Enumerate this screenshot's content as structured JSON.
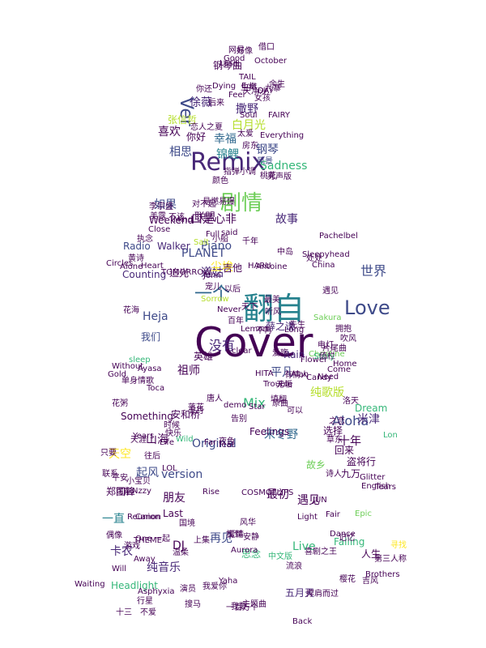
{
  "palette": [
    "#440154",
    "#482878",
    "#3e4a89",
    "#31688e",
    "#26828e",
    "#1f9e89",
    "#35b779",
    "#6ece58",
    "#b5de2b",
    "#fde725"
  ],
  "words": [
    {
      "t": "Cover",
      "c": "#440154"
    },
    {
      "t": "翻自",
      "c": "#26828e"
    },
    {
      "t": "Remix",
      "c": "#482878"
    },
    {
      "t": "剧情",
      "c": "#6ece58"
    },
    {
      "t": "一个",
      "c": "#31688e"
    },
    {
      "t": "Love",
      "c": "#3e4a89"
    },
    {
      "t": "世界",
      "c": "#3e4a89"
    },
    {
      "t": "Aloha",
      "c": "#3e4a89"
    },
    {
      "t": "Heja",
      "c": "#3e4a89"
    },
    {
      "t": "没有",
      "c": "#482878"
    },
    {
      "t": "道姑",
      "c": "#482878"
    },
    {
      "t": "Piano",
      "c": "#3e4a89"
    },
    {
      "t": "PLANET",
      "c": "#3e4a89"
    },
    {
      "t": "口是心非",
      "c": "#440154"
    },
    {
      "t": "故事",
      "c": "#482878"
    },
    {
      "t": "Ver",
      "c": "#3e4a89"
    },
    {
      "t": "徐薇",
      "c": "#482878"
    },
    {
      "t": "撒野",
      "c": "#482878"
    },
    {
      "t": "钢琴",
      "c": "#3e4a89"
    },
    {
      "t": "幸福",
      "c": "#31688e"
    },
    {
      "t": "锦鲤",
      "c": "#26828e"
    },
    {
      "t": "白月光",
      "c": "#b5de2b"
    },
    {
      "t": "喜欢",
      "c": "#440154"
    },
    {
      "t": "相思",
      "c": "#3e4a89"
    },
    {
      "t": "如果",
      "c": "#3e4a89"
    },
    {
      "t": "联盟",
      "c": "#440154"
    },
    {
      "t": "Radio",
      "c": "#3e4a89"
    },
    {
      "t": "Walker",
      "c": "#482878"
    },
    {
      "t": "追光",
      "c": "#440154"
    },
    {
      "t": "Counting",
      "c": "#482878"
    },
    {
      "t": "祖师",
      "c": "#440154"
    },
    {
      "t": "英雄",
      "c": "#440154"
    },
    {
      "t": "平凡",
      "c": "#3e4a89"
    },
    {
      "t": "薛之谦",
      "c": "#482878"
    },
    {
      "t": "安和桥",
      "c": "#440154"
    },
    {
      "t": "Rain",
      "c": "#482878"
    },
    {
      "t": "纯歌版",
      "c": "#b5de2b"
    },
    {
      "t": "Mix",
      "c": "#35b779"
    },
    {
      "t": "Original",
      "c": "#3e4a89"
    },
    {
      "t": "version",
      "c": "#3e4a89"
    },
    {
      "t": "朋友",
      "c": "#440154"
    },
    {
      "t": "最初",
      "c": "#440154"
    },
    {
      "t": "遇见",
      "c": "#440154"
    },
    {
      "t": "再见",
      "c": "#3e4a89"
    },
    {
      "t": "五月天",
      "c": "#482878"
    },
    {
      "t": "纯音乐",
      "c": "#482878"
    },
    {
      "t": "Last",
      "c": "#440154"
    },
    {
      "t": "Live",
      "c": "#35b779"
    },
    {
      "t": "一直",
      "c": "#26828e"
    },
    {
      "t": "卡农",
      "c": "#482878"
    },
    {
      "t": "DJ",
      "c": "#440154"
    },
    {
      "t": "Headlight",
      "c": "#35b779"
    },
    {
      "t": "Something",
      "c": "#440154"
    },
    {
      "t": "山海",
      "c": "#440154"
    },
    {
      "t": "宋冬野",
      "c": "#31688e"
    },
    {
      "t": "Feelings",
      "c": "#440154"
    },
    {
      "t": "我们",
      "c": "#3e4a89"
    },
    {
      "t": "米津",
      "c": "#482878"
    },
    {
      "t": "选择",
      "c": "#440154"
    },
    {
      "t": "十年",
      "c": "#440154"
    },
    {
      "t": "故乡",
      "c": "#6ece58"
    },
    {
      "t": "思念",
      "c": "#35b779"
    },
    {
      "t": "起风",
      "c": "#3e4a89"
    },
    {
      "t": "郑国锋",
      "c": "#440154"
    },
    {
      "t": "天空",
      "c": "#fde725"
    },
    {
      "t": "九万",
      "c": "#440154"
    },
    {
      "t": "盗将行",
      "c": "#440154"
    },
    {
      "t": "片尾曲",
      "c": "#440154"
    },
    {
      "t": "Weekend",
      "c": "#440154"
    },
    {
      "t": "钢琴曲",
      "c": "#440154"
    },
    {
      "t": "尘埃",
      "c": "#fde725"
    },
    {
      "t": "吉他",
      "c": "#440154"
    },
    {
      "t": "Soul",
      "c": "#440154"
    },
    {
      "t": "FAIRY",
      "c": "#440154"
    },
    {
      "t": "张信哲",
      "c": "#b5de2b"
    },
    {
      "t": "你好",
      "c": "#440154"
    },
    {
      "t": "好像",
      "c": "#440154"
    },
    {
      "t": "Dying",
      "c": "#440154"
    },
    {
      "t": "后来",
      "c": "#440154"
    },
    {
      "t": "DAY",
      "c": "#440154"
    },
    {
      "t": "Everything",
      "c": "#440154"
    },
    {
      "t": "Sadness",
      "c": "#35b779"
    },
    {
      "t": "风景",
      "c": "#3e4a89"
    },
    {
      "t": "男声版",
      "c": "#440154"
    },
    {
      "t": "Mind",
      "c": "#440154"
    },
    {
      "t": "千年",
      "c": "#440154"
    },
    {
      "t": "Heart",
      "c": "#440154"
    },
    {
      "t": "Alone",
      "c": "#440154"
    },
    {
      "t": "Life",
      "c": "#440154"
    },
    {
      "t": "Home",
      "c": "#440154"
    },
    {
      "t": "Christine",
      "c": "#6ece58"
    },
    {
      "t": "Sakura",
      "c": "#6ece58"
    },
    {
      "t": "Need",
      "c": "#440154"
    },
    {
      "t": "Come",
      "c": "#440154"
    },
    {
      "t": "Flower",
      "c": "#440154"
    },
    {
      "t": "Dream",
      "c": "#35b779"
    },
    {
      "t": "Lon",
      "c": "#35b779"
    },
    {
      "t": "诗人",
      "c": "#440154"
    },
    {
      "t": "English",
      "c": "#440154"
    },
    {
      "t": "Glitter",
      "c": "#440154"
    },
    {
      "t": "Tears",
      "c": "#440154"
    },
    {
      "t": "JUN",
      "c": "#440154"
    },
    {
      "t": "Fair",
      "c": "#440154"
    },
    {
      "t": "Light",
      "c": "#440154"
    },
    {
      "t": "Falling",
      "c": "#35b779"
    },
    {
      "t": "Dance",
      "c": "#440154"
    },
    {
      "t": "喜剧之王",
      "c": "#440154"
    },
    {
      "t": "中文版",
      "c": "#35b779"
    },
    {
      "t": "流浪",
      "c": "#440154"
    },
    {
      "t": "COSMOFLIPS",
      "c": "#440154"
    },
    {
      "t": "Away",
      "c": "#440154"
    },
    {
      "t": "Will",
      "c": "#440154"
    },
    {
      "t": "Waiting",
      "c": "#440154"
    },
    {
      "t": "Reunion",
      "c": "#440154"
    },
    {
      "t": "THEME",
      "c": "#440154"
    },
    {
      "t": "Canon",
      "c": "#440154"
    },
    {
      "t": "Nzzy",
      "c": "#440154"
    },
    {
      "t": "Years",
      "c": "#440154"
    },
    {
      "t": "Wild",
      "c": "#35b779"
    },
    {
      "t": "Far",
      "c": "#440154"
    },
    {
      "t": "夜色",
      "c": "#440154"
    },
    {
      "t": "Star",
      "c": "#440154"
    },
    {
      "t": "demo",
      "c": "#440154"
    },
    {
      "t": "无垢",
      "c": "#440154"
    },
    {
      "t": "Alan",
      "c": "#440154"
    },
    {
      "t": "Story",
      "c": "#35b779"
    },
    {
      "t": "Without",
      "c": "#440154"
    },
    {
      "t": "Gold",
      "c": "#440154"
    },
    {
      "t": "sleep",
      "c": "#35b779"
    },
    {
      "t": "单身情歌",
      "c": "#440154"
    },
    {
      "t": "花粥",
      "c": "#440154"
    },
    {
      "t": "不再",
      "c": "#440154"
    },
    {
      "t": "Lemon",
      "c": "#440154"
    },
    {
      "t": "听风",
      "c": "#440154"
    },
    {
      "t": "John",
      "c": "#440154"
    },
    {
      "t": "Never",
      "c": "#440154"
    },
    {
      "t": "Sorrow",
      "c": "#b5de2b"
    },
    {
      "t": "Antoine",
      "c": "#440154"
    },
    {
      "t": "Circles",
      "c": "#440154"
    },
    {
      "t": "TOMORROW",
      "c": "#440154"
    },
    {
      "t": "HARU",
      "c": "#440154"
    },
    {
      "t": "China",
      "c": "#440154"
    },
    {
      "t": "Pachelbel",
      "c": "#440154"
    },
    {
      "t": "Sleepyhead",
      "c": "#440154"
    },
    {
      "t": "Salt",
      "c": "#b5de2b"
    },
    {
      "t": "Close",
      "c": "#440154"
    },
    {
      "t": "Full",
      "c": "#440154"
    },
    {
      "t": "said",
      "c": "#440154"
    },
    {
      "t": "Good",
      "c": "#440154"
    },
    {
      "t": "Lash",
      "c": "#440154"
    },
    {
      "t": "October",
      "c": "#440154"
    },
    {
      "t": "TAIL",
      "c": "#440154"
    },
    {
      "t": "Feel",
      "c": "#440154"
    },
    {
      "t": "Edit",
      "c": "#440154"
    },
    {
      "t": "clear",
      "c": "#440154"
    },
    {
      "t": "feat",
      "c": "#440154"
    },
    {
      "t": "HITA",
      "c": "#440154"
    },
    {
      "t": "Ayasa",
      "c": "#440154"
    },
    {
      "t": "Toca",
      "c": "#440154"
    },
    {
      "t": "Trouble",
      "c": "#440154"
    },
    {
      "t": "Long",
      "c": "#440154"
    },
    {
      "t": "Candy",
      "c": "#440154"
    },
    {
      "t": "Epic",
      "c": "#6ece58"
    },
    {
      "t": "Brothers",
      "c": "#440154"
    },
    {
      "t": "Asphyxia",
      "c": "#440154"
    },
    {
      "t": "One",
      "c": "#440154"
    },
    {
      "t": "Rise",
      "c": "#440154"
    },
    {
      "t": "LOL",
      "c": "#440154"
    },
    {
      "t": "Aurora",
      "c": "#440154"
    },
    {
      "t": "Back",
      "c": "#440154"
    },
    {
      "t": "Yaha",
      "c": "#440154"
    },
    {
      "t": "十三",
      "c": "#440154"
    },
    {
      "t": "不爱",
      "c": "#440154"
    },
    {
      "t": "行星",
      "c": "#440154"
    },
    {
      "t": "搜马",
      "c": "#440154"
    },
    {
      "t": "演员",
      "c": "#440154"
    },
    {
      "t": "我爱你",
      "c": "#440154"
    },
    {
      "t": "我要",
      "c": "#440154"
    },
    {
      "t": "一百万个",
      "c": "#440154"
    },
    {
      "t": "主题曲",
      "c": "#440154"
    },
    {
      "t": "撑肩而过",
      "c": "#440154"
    },
    {
      "t": "樱花",
      "c": "#440154"
    },
    {
      "t": "吉风",
      "c": "#440154"
    },
    {
      "t": "第三人称",
      "c": "#440154"
    },
    {
      "t": "人生",
      "c": "#440154"
    },
    {
      "t": "寻找",
      "c": "#fde725"
    },
    {
      "t": "记忆",
      "c": "#440154"
    },
    {
      "t": "回来",
      "c": "#440154"
    },
    {
      "t": "安静",
      "c": "#440154"
    },
    {
      "t": "找到",
      "c": "#440154"
    },
    {
      "t": "爱情",
      "c": "#440154"
    },
    {
      "t": "风华",
      "c": "#440154"
    },
    {
      "t": "上集",
      "c": "#440154"
    },
    {
      "t": "国境",
      "c": "#440154"
    },
    {
      "t": "一起",
      "c": "#440154"
    },
    {
      "t": "温柔",
      "c": "#440154"
    },
    {
      "t": "偶像",
      "c": "#440154"
    },
    {
      "t": "游戏",
      "c": "#440154"
    },
    {
      "t": "可能",
      "c": "#440154"
    },
    {
      "t": "小宝贝",
      "c": "#440154"
    },
    {
      "t": "只要",
      "c": "#440154"
    },
    {
      "t": "联系",
      "c": "#440154"
    },
    {
      "t": "往后",
      "c": "#440154"
    },
    {
      "t": "平安",
      "c": "#440154"
    },
    {
      "t": "天涯",
      "c": "#440154"
    },
    {
      "t": "快乐",
      "c": "#440154"
    },
    {
      "t": "时候",
      "c": "#440154"
    },
    {
      "t": "五月",
      "c": "#440154"
    },
    {
      "t": "落花",
      "c": "#440154"
    },
    {
      "t": "告别",
      "c": "#440154"
    },
    {
      "t": "唐人",
      "c": "#440154"
    },
    {
      "t": "填翻",
      "c": "#440154"
    },
    {
      "t": "原曲",
      "c": "#440154"
    },
    {
      "t": "可以",
      "c": "#440154"
    },
    {
      "t": "之恋",
      "c": "#440154"
    },
    {
      "t": "草东",
      "c": "#440154"
    },
    {
      "t": "洛天",
      "c": "#440154"
    },
    {
      "t": "有情人",
      "c": "#440154"
    },
    {
      "t": "爱殇",
      "c": "#440154"
    },
    {
      "t": "倚栏",
      "c": "#440154"
    },
    {
      "t": "电灯",
      "c": "#440154"
    },
    {
      "t": "吹风",
      "c": "#440154"
    },
    {
      "t": "拥抱",
      "c": "#440154"
    },
    {
      "t": "先生",
      "c": "#440154"
    },
    {
      "t": "百年",
      "c": "#440154"
    },
    {
      "t": "宠儿",
      "c": "#440154"
    },
    {
      "t": "花海",
      "c": "#440154"
    },
    {
      "t": "天下",
      "c": "#440154"
    },
    {
      "t": "以后",
      "c": "#440154"
    },
    {
      "t": "最美",
      "c": "#440154"
    },
    {
      "t": "中岛",
      "c": "#440154"
    },
    {
      "t": "处处",
      "c": "#440154"
    },
    {
      "t": "遇见",
      "c": "#440154"
    },
    {
      "t": "小船",
      "c": "#440154"
    },
    {
      "t": "黄诗",
      "c": "#440154"
    },
    {
      "t": "执念",
      "c": "#440154"
    },
    {
      "t": "美露",
      "c": "#440154"
    },
    {
      "t": "易燃易爆",
      "c": "#440154"
    },
    {
      "t": "李宗盛",
      "c": "#440154"
    },
    {
      "t": "不该",
      "c": "#440154"
    },
    {
      "t": "对不起",
      "c": "#440154"
    },
    {
      "t": "颜色",
      "c": "#440154"
    },
    {
      "t": "指弹小调",
      "c": "#440154"
    },
    {
      "t": "桃花",
      "c": "#440154"
    },
    {
      "t": "你还",
      "c": "#440154"
    },
    {
      "t": "生命",
      "c": "#440154"
    },
    {
      "t": "太爱",
      "c": "#440154"
    },
    {
      "t": "网易",
      "c": "#440154"
    },
    {
      "t": "借口",
      "c": "#440154"
    },
    {
      "t": "天净沙",
      "c": "#440154"
    },
    {
      "t": "女孩",
      "c": "#440154"
    },
    {
      "t": "余生",
      "c": "#440154"
    },
    {
      "t": "九寨",
      "c": "#440154"
    },
    {
      "t": "房东",
      "c": "#440154"
    },
    {
      "t": "恋人之夏",
      "c": "#440154"
    }
  ]
}
